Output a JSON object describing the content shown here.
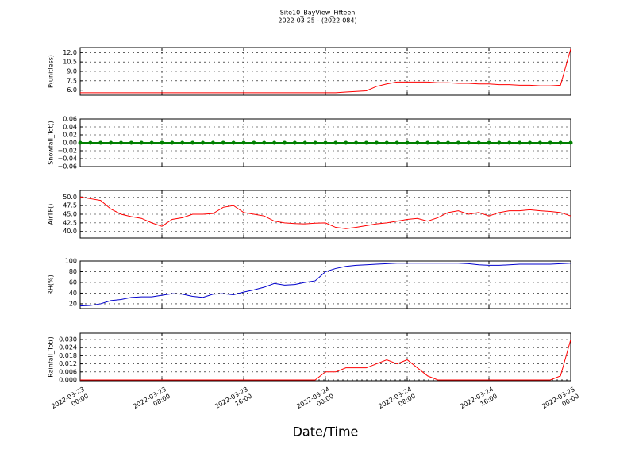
{
  "chart_data": {
    "type": "line",
    "title": "Site10_BayView_Fifteen",
    "subtitle": "2022-03-25 - (2022-084)",
    "xlabel": "Date/Time",
    "grid": true,
    "x": [
      "2022-03-23 00:00",
      "2022-03-23 01:00",
      "2022-03-23 02:00",
      "2022-03-23 03:00",
      "2022-03-23 04:00",
      "2022-03-23 05:00",
      "2022-03-23 06:00",
      "2022-03-23 07:00",
      "2022-03-23 08:00",
      "2022-03-23 09:00",
      "2022-03-23 10:00",
      "2022-03-23 11:00",
      "2022-03-23 12:00",
      "2022-03-23 13:00",
      "2022-03-23 14:00",
      "2022-03-23 15:00",
      "2022-03-23 16:00",
      "2022-03-23 17:00",
      "2022-03-23 18:00",
      "2022-03-23 19:00",
      "2022-03-23 20:00",
      "2022-03-23 21:00",
      "2022-03-23 22:00",
      "2022-03-23 23:00",
      "2022-03-24 00:00",
      "2022-03-24 01:00",
      "2022-03-24 02:00",
      "2022-03-24 03:00",
      "2022-03-24 04:00",
      "2022-03-24 05:00",
      "2022-03-24 06:00",
      "2022-03-24 07:00",
      "2022-03-24 08:00",
      "2022-03-24 09:00",
      "2022-03-24 10:00",
      "2022-03-24 11:00",
      "2022-03-24 12:00",
      "2022-03-24 13:00",
      "2022-03-24 14:00",
      "2022-03-24 15:00",
      "2022-03-24 16:00",
      "2022-03-24 17:00",
      "2022-03-24 18:00",
      "2022-03-24 19:00",
      "2022-03-24 20:00",
      "2022-03-24 21:00",
      "2022-03-24 22:00",
      "2022-03-24 23:00",
      "2022-03-25 00:00"
    ],
    "xlim": [
      "2022-03-23 00:00",
      "2022-03-25 00:00"
    ],
    "xticks": [
      {
        "value": "2022-03-23 00:00",
        "label": "2022-03-23\n00:00"
      },
      {
        "value": "2022-03-23 08:00",
        "label": "2022-03-23\n08:00"
      },
      {
        "value": "2022-03-23 16:00",
        "label": "2022-03-23\n16:00"
      },
      {
        "value": "2022-03-24 00:00",
        "label": "2022-03-24\n00:00"
      },
      {
        "value": "2022-03-24 08:00",
        "label": "2022-03-24\n08:00"
      },
      {
        "value": "2022-03-24 16:00",
        "label": "2022-03-24\n16:00"
      },
      {
        "value": "2022-03-25 00:00",
        "label": "2022-03-25\n00:00"
      }
    ],
    "panels": [
      {
        "ylabel": "P(unitless)",
        "color": "#ff0000",
        "markers": false,
        "ylim": [
          5.2,
          12.8
        ],
        "yticks": [
          {
            "value": 6,
            "label": "6.0"
          },
          7.5,
          {
            "value": 9,
            "label": "9.0"
          },
          10.5,
          {
            "value": 12,
            "label": "12.0"
          }
        ],
        "values": [
          5.6,
          5.6,
          5.6,
          5.6,
          5.6,
          5.6,
          5.6,
          5.6,
          5.6,
          5.6,
          5.6,
          5.6,
          5.6,
          5.6,
          5.6,
          5.6,
          5.6,
          5.6,
          5.6,
          5.6,
          5.6,
          5.6,
          5.6,
          5.6,
          5.6,
          5.6,
          5.7,
          5.8,
          5.9,
          6.6,
          7.0,
          7.3,
          7.3,
          7.3,
          7.3,
          7.2,
          7.2,
          7.1,
          7.1,
          7.0,
          7.0,
          6.9,
          6.9,
          6.8,
          6.8,
          6.7,
          6.7,
          6.8,
          12.6
        ]
      },
      {
        "ylabel": "Snowfall_Tot()",
        "color": "#008000",
        "markers": true,
        "ylim": [
          -0.06,
          0.06
        ],
        "yticks": [
          {
            "value": -0.06,
            "label": "−0.06"
          },
          {
            "value": -0.04,
            "label": "−0.04"
          },
          {
            "value": -0.02,
            "label": "−0.02"
          },
          {
            "value": 0,
            "label": "0.00"
          },
          0.02,
          0.04,
          0.06
        ],
        "values": [
          0,
          0,
          0,
          0,
          0,
          0,
          0,
          0,
          0,
          0,
          0,
          0,
          0,
          0,
          0,
          0,
          0,
          0,
          0,
          0,
          0,
          0,
          0,
          0,
          0,
          0,
          0,
          0,
          0,
          0,
          0,
          0,
          0,
          0,
          0,
          0,
          0,
          0,
          0,
          0,
          0,
          0,
          0,
          0,
          0,
          0,
          0,
          0,
          0
        ]
      },
      {
        "ylabel": "AirTF()",
        "color": "#ff0000",
        "markers": false,
        "ylim": [
          38.1,
          51.9
        ],
        "yticks": [
          {
            "value": 40,
            "label": "40.0"
          },
          42.5,
          {
            "value": 45,
            "label": "45.0"
          },
          47.5,
          {
            "value": 50,
            "label": "50.0"
          }
        ],
        "values": [
          50,
          49.5,
          49,
          46.5,
          45,
          44.3,
          43.8,
          42.5,
          41.5,
          43.5,
          44,
          45,
          45,
          45.2,
          47,
          47.5,
          45.5,
          45,
          44.5,
          43,
          42.5,
          42.3,
          42.2,
          42.4,
          42.5,
          41.2,
          40.8,
          41.2,
          41.7,
          42.2,
          42.5,
          43,
          43.5,
          43.8,
          43,
          44,
          45.5,
          46,
          45,
          45.5,
          44.5,
          45.5,
          46,
          46,
          46.3,
          46,
          45.8,
          45.5,
          44.5
        ]
      },
      {
        "ylabel": "RH(%)",
        "color": "#0000cc",
        "markers": false,
        "ylim": [
          11,
          100
        ],
        "yticks": [
          20,
          40,
          60,
          80,
          100
        ],
        "values": [
          16,
          17,
          20,
          26,
          28,
          32,
          33,
          33,
          36,
          39,
          38,
          34,
          32,
          38,
          39,
          37,
          42,
          46,
          51,
          58,
          55,
          56,
          60,
          63,
          80,
          86,
          90,
          92,
          93,
          94,
          95,
          96,
          96,
          96,
          96,
          96,
          96,
          96,
          95,
          93,
          92,
          92,
          93,
          94,
          94,
          94,
          94,
          95,
          96
        ]
      },
      {
        "ylabel": "Rainfall_Tot()",
        "color": "#ff0000",
        "markers": false,
        "ylim": [
          -0.0006,
          0.0347
        ],
        "yticks": [
          {
            "value": 0,
            "label": "0.000"
          },
          0.006,
          0.012,
          0.018,
          0.024,
          {
            "value": 0.03,
            "label": "0.030"
          }
        ],
        "values": [
          0,
          0,
          0,
          0,
          0,
          0,
          0,
          0,
          0,
          0,
          0,
          0,
          0,
          0,
          0,
          0,
          0,
          0,
          0,
          0,
          0,
          0,
          0,
          0,
          0.006,
          0.006,
          0.009,
          0.009,
          0.009,
          0.012,
          0.015,
          0.012,
          0.015,
          0.009,
          0.003,
          0,
          0,
          0,
          0,
          0,
          0,
          0,
          0,
          0,
          0,
          0,
          0,
          0.003,
          0.03
        ]
      }
    ]
  }
}
